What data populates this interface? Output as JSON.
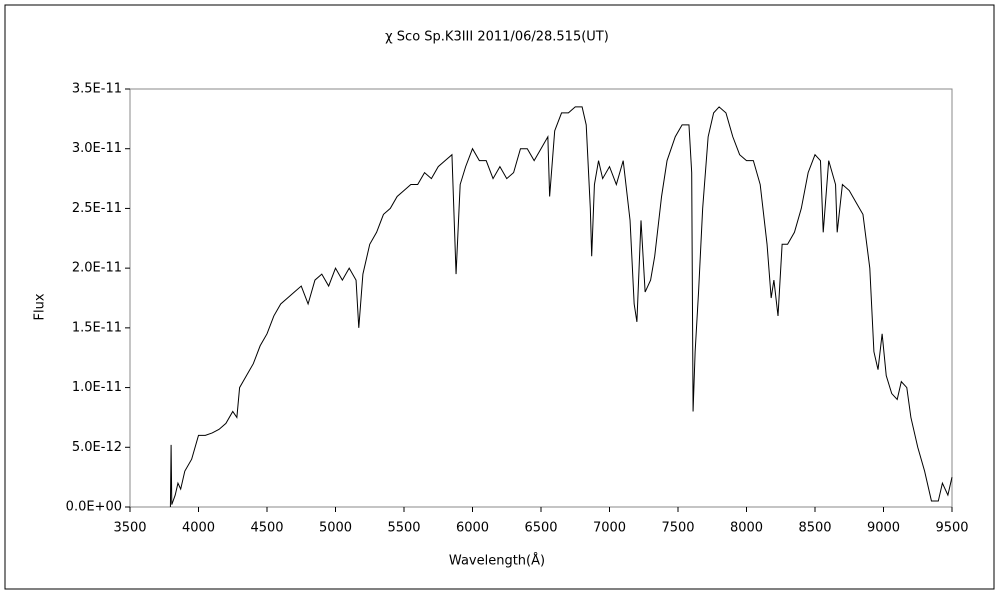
{
  "chart_data": {
    "type": "line",
    "title": "χ Sco    Sp.K3III    2011/06/28.515(UT)",
    "xlabel": "Wavelength(Å)",
    "ylabel": "Flux",
    "color": "#000000",
    "x": [
      3795,
      3800,
      3805,
      3830,
      3850,
      3870,
      3900,
      3950,
      4000,
      4050,
      4100,
      4150,
      4200,
      4250,
      4280,
      4300,
      4350,
      4400,
      4450,
      4500,
      4550,
      4600,
      4650,
      4700,
      4750,
      4800,
      4850,
      4900,
      4950,
      5000,
      5050,
      5100,
      5150,
      5170,
      5200,
      5250,
      5300,
      5350,
      5400,
      5450,
      5500,
      5550,
      5600,
      5650,
      5700,
      5750,
      5800,
      5850,
      5880,
      5910,
      5950,
      6000,
      6050,
      6100,
      6150,
      6200,
      6250,
      6300,
      6350,
      6400,
      6450,
      6500,
      6550,
      6563,
      6600,
      6650,
      6700,
      6750,
      6800,
      6830,
      6860,
      6870,
      6890,
      6920,
      6950,
      7000,
      7050,
      7100,
      7150,
      7180,
      7200,
      7230,
      7260,
      7300,
      7330,
      7380,
      7420,
      7480,
      7530,
      7580,
      7600,
      7610,
      7625,
      7650,
      7680,
      7720,
      7760,
      7800,
      7850,
      7900,
      7950,
      8000,
      8050,
      8100,
      8150,
      8180,
      8200,
      8230,
      8260,
      8300,
      8350,
      8400,
      8450,
      8500,
      8540,
      8560,
      8600,
      8650,
      8662,
      8700,
      8750,
      8800,
      8850,
      8900,
      8930,
      8960,
      8990,
      9020,
      9060,
      9100,
      9130,
      9170,
      9200,
      9250,
      9300,
      9350,
      9400,
      9430,
      9470,
      9500
    ],
    "values": [
      0,
      5.2e-12,
      2e-13,
      1e-12,
      2e-12,
      1.5e-12,
      3e-12,
      4e-12,
      6e-12,
      6e-12,
      6.2e-12,
      6.5e-12,
      7e-12,
      8e-12,
      7.5e-12,
      1e-11,
      1.1e-11,
      1.2e-11,
      1.35e-11,
      1.45e-11,
      1.6e-11,
      1.7e-11,
      1.75e-11,
      1.8e-11,
      1.85e-11,
      1.7e-11,
      1.9e-11,
      1.95e-11,
      1.85e-11,
      2e-11,
      1.9e-11,
      2e-11,
      1.9e-11,
      1.5e-11,
      1.95e-11,
      2.2e-11,
      2.3e-11,
      2.45e-11,
      2.5e-11,
      2.6e-11,
      2.65e-11,
      2.7e-11,
      2.7e-11,
      2.8e-11,
      2.75e-11,
      2.85e-11,
      2.9e-11,
      2.95e-11,
      1.95e-11,
      2.7e-11,
      2.85e-11,
      3e-11,
      2.9e-11,
      2.9e-11,
      2.75e-11,
      2.85e-11,
      2.75e-11,
      2.8e-11,
      3e-11,
      3e-11,
      2.9e-11,
      3e-11,
      3.1e-11,
      2.6e-11,
      3.15e-11,
      3.3e-11,
      3.3e-11,
      3.35e-11,
      3.35e-11,
      3.2e-11,
      2.5e-11,
      2.1e-11,
      2.7e-11,
      2.9e-11,
      2.75e-11,
      2.85e-11,
      2.7e-11,
      2.9e-11,
      2.4e-11,
      1.7e-11,
      1.55e-11,
      2.4e-11,
      1.8e-11,
      1.9e-11,
      2.1e-11,
      2.6e-11,
      2.9e-11,
      3.1e-11,
      3.2e-11,
      3.2e-11,
      2.8e-11,
      8e-12,
      1.3e-11,
      1.8e-11,
      2.5e-11,
      3.1e-11,
      3.3e-11,
      3.35e-11,
      3.3e-11,
      3.1e-11,
      2.95e-11,
      2.9e-11,
      2.9e-11,
      2.7e-11,
      2.2e-11,
      1.75e-11,
      1.9e-11,
      1.6e-11,
      2.2e-11,
      2.2e-11,
      2.3e-11,
      2.5e-11,
      2.8e-11,
      2.95e-11,
      2.9e-11,
      2.3e-11,
      2.9e-11,
      2.7e-11,
      2.3e-11,
      2.7e-11,
      2.65e-11,
      2.55e-11,
      2.45e-11,
      2e-11,
      1.3e-11,
      1.15e-11,
      1.45e-11,
      1.1e-11,
      9.5e-12,
      9e-12,
      1.05e-11,
      1e-11,
      7.5e-12,
      5e-12,
      3e-12,
      5e-13,
      5e-13,
      2e-12,
      1e-12,
      2.5e-12
    ],
    "xlim": [
      3500,
      9500
    ],
    "xticks": [
      3500,
      4000,
      4500,
      5000,
      5500,
      6000,
      6500,
      7000,
      7500,
      8000,
      8500,
      9000,
      9500
    ],
    "ylim": [
      0,
      3.5e-11
    ],
    "yticks": [
      {
        "value": 0,
        "label": "0.0E+00"
      },
      {
        "value": 5e-12,
        "label": "5.0E-12"
      },
      {
        "value": 1e-11,
        "label": "1.0E-11"
      },
      {
        "value": 1.5e-11,
        "label": "1.5E-11"
      },
      {
        "value": 2e-11,
        "label": "2.0E-11"
      },
      {
        "value": 2.5e-11,
        "label": "2.5E-11"
      },
      {
        "value": 3e-11,
        "label": "3.0E-11"
      },
      {
        "value": 3.5e-11,
        "label": "3.5E-11"
      }
    ]
  }
}
